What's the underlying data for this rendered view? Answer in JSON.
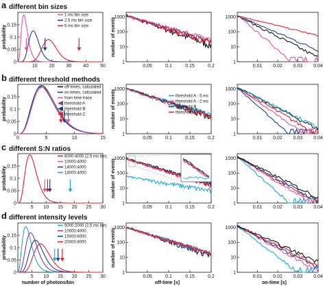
{
  "panels": [
    {
      "label": "a",
      "title": "different bin sizes"
    },
    {
      "label": "b",
      "title": "different threshold methods"
    },
    {
      "label": "c",
      "title": "different S:N ratios"
    },
    {
      "label": "d",
      "title": "different intensity levels"
    }
  ],
  "axes": {
    "prob_ylabel": "probability",
    "events_ylabel": "number of events",
    "photons_xlabel": "number of photons/bin",
    "offtime_xlabel": "off-time [s]",
    "ontime_xlabel": "on-time [s]"
  },
  "colors": {
    "black": "#111111",
    "blue": "#1b3f8f",
    "pink": "#e0559e",
    "red": "#e0202c",
    "cyan": "#19a9d8",
    "purple": "#8b3a8b",
    "gray": "#aaaaaa"
  },
  "chart_data": [
    {
      "id": "a-hist",
      "type": "line",
      "panel": "a",
      "xlabel": "",
      "ylabel": "probability",
      "xlim": [
        0,
        50
      ],
      "ylim": [
        0,
        0.2
      ],
      "xticks": [
        10,
        20,
        30,
        40,
        50
      ],
      "yticks": [
        0,
        0.05,
        0.1,
        0.15
      ],
      "legend": [
        "1 ms bin size",
        "2.5 ms bin size",
        "5 ms bin size"
      ],
      "legend_colors": [
        "pink",
        "blue",
        "red"
      ],
      "series": [
        {
          "name": "1 ms bin size",
          "color": "pink",
          "dist": "poisson",
          "mean": 3.5,
          "peak": 0.19
        },
        {
          "name": "2.5 ms bin size",
          "color": "blue",
          "dist": "poisson",
          "mean": 9,
          "peak": 0.125
        },
        {
          "name": "5 ms bin size",
          "color": "red",
          "dist": "poisson",
          "mean": 18,
          "peak": 0.09
        }
      ],
      "arrows": [
        {
          "x": 5,
          "color": "pink"
        },
        {
          "x": 16,
          "color": "blue"
        },
        {
          "x": 36,
          "color": "red"
        }
      ]
    },
    {
      "id": "a-off",
      "type": "line",
      "panel": "a",
      "log_y": true,
      "xlabel": "",
      "ylabel": "number of events",
      "xlim": [
        0,
        0.2
      ],
      "ylim": [
        1,
        2000
      ],
      "xticks": [
        0.05,
        0.1,
        0.15,
        0.2
      ],
      "yticks": [
        1,
        10,
        100,
        1000
      ],
      "series": [
        {
          "color": "black",
          "a": 1300,
          "tau": 0.043,
          "noise": 0.5
        },
        {
          "color": "blue",
          "a": 1250,
          "tau": 0.05,
          "noise": 0.3
        },
        {
          "color": "pink",
          "a": 1200,
          "tau": 0.055,
          "noise": 0.3
        },
        {
          "color": "red",
          "a": 1100,
          "tau": 0.05,
          "noise": 0.4
        }
      ]
    },
    {
      "id": "a-on",
      "type": "line",
      "panel": "a",
      "log_y": true,
      "xlabel": "",
      "ylabel": "",
      "xlim": [
        0,
        0.04
      ],
      "ylim": [
        1,
        2000
      ],
      "xticks": [
        0.01,
        0.02,
        0.03,
        0.04
      ],
      "yticks": [
        1,
        10,
        100,
        1000
      ],
      "series": [
        {
          "color": "pink",
          "a": 1300,
          "tau": 0.0038,
          "noise": 0.3
        },
        {
          "color": "black",
          "a": 1200,
          "tau": 0.0062,
          "noise": 0.3
        },
        {
          "color": "blue",
          "a": 1200,
          "tau": 0.0075,
          "noise": 0.2
        },
        {
          "color": "red",
          "a": 1200,
          "tau": 0.013,
          "noise": 0.1
        }
      ]
    },
    {
      "id": "b-hist",
      "type": "line",
      "panel": "b",
      "xlabel": "",
      "ylabel": "probability",
      "xlim": [
        0,
        15
      ],
      "ylim": [
        0,
        0.2
      ],
      "xticks": [
        0,
        5,
        10,
        15
      ],
      "yticks": [
        0,
        0.05,
        0.1,
        0.15
      ],
      "legend": [
        "off-times, calculated",
        "on-times, calculated",
        "from time trace",
        "threshold A",
        "threshold B",
        "threshold C"
      ],
      "legend_colors": [
        "black",
        "blue",
        "pink",
        "purple",
        "blue",
        "red"
      ],
      "series": [
        {
          "name": "off-times, calculated",
          "color": "black",
          "dist": "poisson",
          "mean": 4.2,
          "peak": 0.195
        },
        {
          "name": "on-times, calculated",
          "color": "blue",
          "dist": "poisson",
          "mean": 4.1,
          "peak": 0.19
        },
        {
          "name": "from time trace",
          "color": "pink",
          "dist": "poisson",
          "mean": 4.3,
          "peak": 0.188
        }
      ],
      "arrows": [
        {
          "x": 7.6,
          "color": "red"
        },
        {
          "x": 8.2,
          "color": "blue"
        },
        {
          "x": 8.9,
          "color": "pink"
        }
      ]
    },
    {
      "id": "b-off",
      "type": "line",
      "panel": "b",
      "log_y": true,
      "xlabel": "",
      "ylabel": "number of events",
      "xlim": [
        0,
        0.2
      ],
      "ylim": [
        1,
        2000
      ],
      "xticks": [
        0.05,
        0.1,
        0.15,
        0.2
      ],
      "yticks": [
        1,
        10,
        100,
        1000
      ],
      "legend": [
        "threshold A - 5 ms",
        "threshold A - 2 ms",
        "threshold B",
        "threshold C"
      ],
      "legend_colors": [
        "cyan",
        "pink",
        "blue",
        "red"
      ],
      "series": [
        {
          "color": "black",
          "a": 1100,
          "tau": 0.045,
          "noise": 0.4
        },
        {
          "color": "cyan",
          "a": 1000,
          "tau": 0.05,
          "noise": 0.4
        },
        {
          "color": "blue",
          "a": 1100,
          "tau": 0.048,
          "noise": 0.3
        },
        {
          "color": "red",
          "a": 1050,
          "tau": 0.047,
          "noise": 0.4
        }
      ]
    },
    {
      "id": "b-on",
      "type": "line",
      "panel": "b",
      "log_y": true,
      "xlabel": "",
      "ylabel": "",
      "xlim": [
        0,
        0.04
      ],
      "ylim": [
        1,
        2000
      ],
      "xticks": [
        0.01,
        0.02,
        0.03,
        0.04
      ],
      "yticks": [
        1,
        10,
        100,
        1000
      ],
      "series": [
        {
          "color": "blue",
          "a": 1200,
          "tau": 0.0036,
          "noise": 0.2
        },
        {
          "color": "pink",
          "a": 1200,
          "tau": 0.0047,
          "noise": 0.2
        },
        {
          "color": "red",
          "a": 1200,
          "tau": 0.0055,
          "noise": 0.3
        },
        {
          "color": "black",
          "a": 1300,
          "tau": 0.0062,
          "noise": 0.3
        },
        {
          "color": "cyan",
          "a": 1300,
          "tau": 0.0064,
          "noise": 0.3
        }
      ]
    },
    {
      "id": "c-hist",
      "type": "line",
      "panel": "c",
      "xlabel": "",
      "ylabel": "probability",
      "xlim": [
        0,
        30
      ],
      "ylim": [
        0,
        0.2
      ],
      "xticks": [
        5,
        10,
        15,
        20,
        25,
        30
      ],
      "yticks": [
        0,
        0.05,
        0.1,
        0.15
      ],
      "legend": [
        "6000:4000 (2.5 ms bin)",
        "10000:4000",
        "14000:4000",
        "18000:4000"
      ],
      "legend_colors": [
        "red",
        "pink",
        "blue",
        "cyan"
      ],
      "series": [
        {
          "name": "6000:4000 (2.5 ms bin)",
          "color": "red",
          "dist": "poisson",
          "mean": 4.2,
          "peak": 0.195
        }
      ],
      "arrows": [
        {
          "x": 9.5,
          "color": "pink"
        },
        {
          "x": 10.5,
          "color": "red"
        },
        {
          "x": 11.3,
          "color": "blue"
        },
        {
          "x": 18.5,
          "color": "cyan"
        }
      ]
    },
    {
      "id": "c-off",
      "type": "line",
      "panel": "c",
      "log_y": true,
      "xlabel": "",
      "ylabel": "number of events",
      "xlim": [
        0,
        0.2
      ],
      "ylim": [
        1,
        2000
      ],
      "xticks": [
        0.05,
        0.1,
        0.15,
        0.2
      ],
      "yticks": [
        1,
        10,
        100,
        1000
      ],
      "series": [
        {
          "color": "cyan",
          "a": 60,
          "tau": 0.09,
          "noise": 0.4
        },
        {
          "color": "black",
          "a": 1000,
          "tau": 0.05,
          "noise": 0.3
        },
        {
          "color": "blue",
          "a": 950,
          "tau": 0.05,
          "noise": 0.3
        },
        {
          "color": "pink",
          "a": 900,
          "tau": 0.048,
          "noise": 0.3
        },
        {
          "color": "red",
          "a": 880,
          "tau": 0.048,
          "noise": 0.3
        }
      ],
      "inset": true
    },
    {
      "id": "c-on",
      "type": "line",
      "panel": "c",
      "log_y": true,
      "xlabel": "",
      "ylabel": "",
      "xlim": [
        0,
        0.04
      ],
      "ylim": [
        1,
        2000
      ],
      "xticks": [
        0.01,
        0.02,
        0.03,
        0.04
      ],
      "yticks": [
        1,
        10,
        100,
        1000
      ],
      "series": [
        {
          "color": "cyan",
          "a": 1300,
          "tau": 0.0036,
          "noise": 0.3
        },
        {
          "color": "pink",
          "a": 1200,
          "tau": 0.0052,
          "noise": 0.3
        },
        {
          "color": "red",
          "a": 1200,
          "tau": 0.0055,
          "noise": 0.3
        },
        {
          "color": "blue",
          "a": 1250,
          "tau": 0.0058,
          "noise": 0.3
        },
        {
          "color": "black",
          "a": 1300,
          "tau": 0.0063,
          "noise": 0.3
        }
      ]
    },
    {
      "id": "d-hist",
      "type": "line",
      "panel": "d",
      "xlabel": "number of photons/bin",
      "ylabel": "probability",
      "xlim": [
        0,
        30
      ],
      "ylim": [
        0,
        0.2
      ],
      "xticks": [
        5,
        10,
        15,
        20,
        25,
        30
      ],
      "yticks": [
        0,
        0.05,
        0.1,
        0.15
      ],
      "legend": [
        "5000:2000 (2.5 ms bin)",
        "10000:4000",
        "15000:6000",
        "20000:8000"
      ],
      "legend_colors": [
        "cyan",
        "purple",
        "blue",
        "red"
      ],
      "series": [
        {
          "name": "5000:2000 (2.5 ms bin)",
          "color": "cyan",
          "dist": "poisson",
          "mean": 2.8,
          "peak": 0.185
        },
        {
          "name": "10000:4000",
          "color": "purple",
          "dist": "poisson",
          "mean": 4.5,
          "peak": 0.16
        },
        {
          "name": "15000:6000",
          "color": "blue",
          "dist": "poisson",
          "mean": 6.2,
          "peak": 0.13
        },
        {
          "name": "20000:8000",
          "color": "red",
          "dist": "poisson",
          "mean": 8,
          "peak": 0.115
        }
      ],
      "arrows": [
        {
          "x": 13,
          "color": "cyan"
        },
        {
          "x": 14.2,
          "color": "blue"
        },
        {
          "x": 15.7,
          "color": "red"
        }
      ]
    },
    {
      "id": "d-off",
      "type": "line",
      "panel": "d",
      "log_y": true,
      "xlabel": "off-time [s]",
      "ylabel": "number of events",
      "xlim": [
        0,
        0.2
      ],
      "ylim": [
        1,
        2000
      ],
      "xticks": [
        0.05,
        0.1,
        0.15,
        0.2
      ],
      "yticks": [
        1,
        10,
        100,
        1000
      ],
      "series": [
        {
          "color": "black",
          "a": 1100,
          "tau": 0.045,
          "noise": 0.4
        },
        {
          "color": "cyan",
          "a": 1000,
          "tau": 0.05,
          "noise": 0.4
        },
        {
          "color": "blue",
          "a": 1050,
          "tau": 0.048,
          "noise": 0.3
        },
        {
          "color": "pink",
          "a": 1000,
          "tau": 0.048,
          "noise": 0.3
        },
        {
          "color": "red",
          "a": 980,
          "tau": 0.05,
          "noise": 0.3
        }
      ]
    },
    {
      "id": "d-on",
      "type": "line",
      "panel": "d",
      "log_y": true,
      "xlabel": "on-time [s]",
      "ylabel": "",
      "xlim": [
        0,
        0.04
      ],
      "ylim": [
        1,
        2000
      ],
      "xticks": [
        0.01,
        0.02,
        0.03,
        0.04
      ],
      "yticks": [
        1,
        10,
        100,
        1000
      ],
      "series": [
        {
          "color": "cyan",
          "a": 1300,
          "tau": 0.0042,
          "noise": 0.3
        },
        {
          "color": "pink",
          "a": 1250,
          "tau": 0.0058,
          "noise": 0.3
        },
        {
          "color": "blue",
          "a": 1250,
          "tau": 0.0062,
          "noise": 0.3
        },
        {
          "color": "red",
          "a": 1250,
          "tau": 0.0066,
          "noise": 0.3
        },
        {
          "color": "black",
          "a": 1300,
          "tau": 0.0072,
          "noise": 0.3
        }
      ]
    }
  ]
}
